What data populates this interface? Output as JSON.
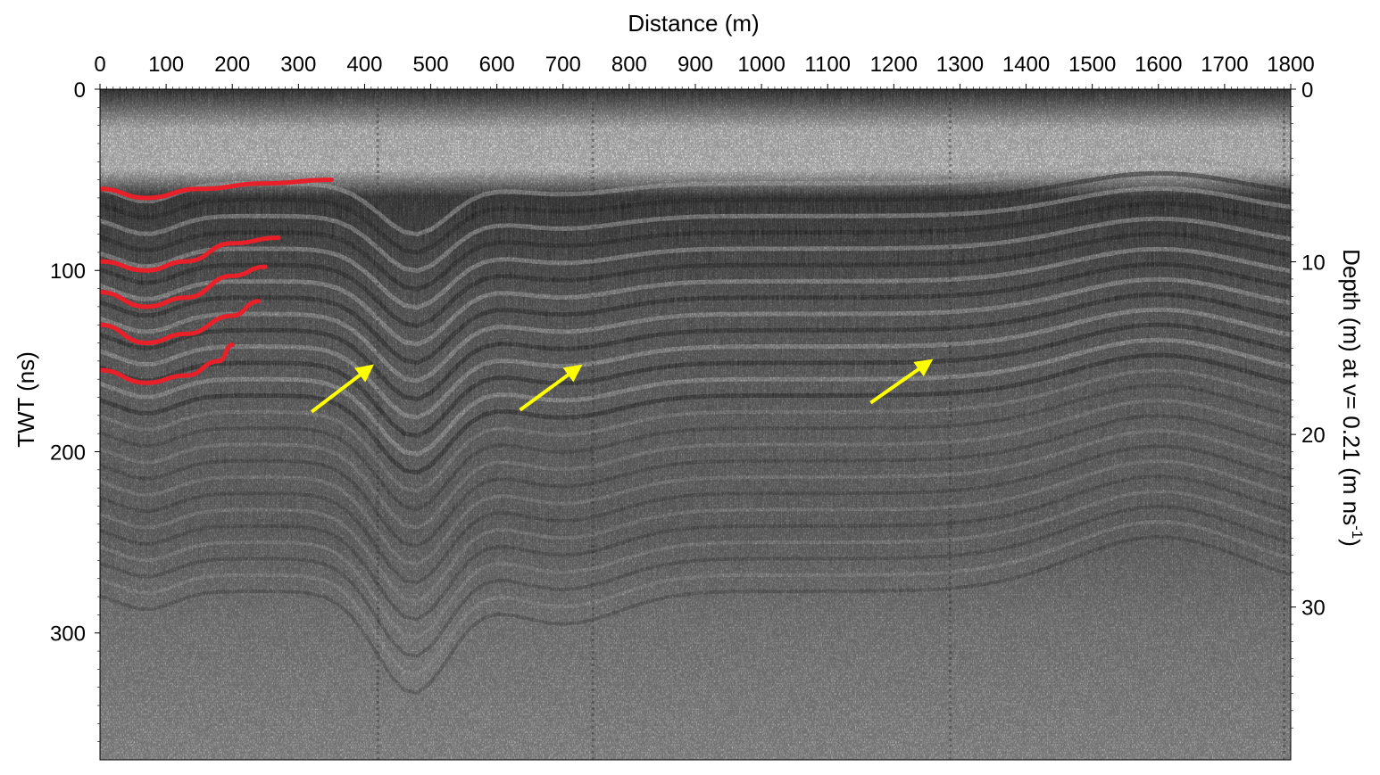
{
  "chart_data": {
    "type": "heatmap",
    "title": "",
    "xlabel": "Distance (m)",
    "ylabel": "TWT (ns)",
    "y2label": "Depth (m) at v= 0.21 (m ns",
    "y2label_superscript": "-1",
    "y2label_tail": ")",
    "xlim": [
      0,
      1800
    ],
    "ylim": [
      0,
      370
    ],
    "y2lim": [
      0,
      38.85
    ],
    "x_ticks": [
      0,
      100,
      200,
      300,
      400,
      500,
      600,
      700,
      800,
      900,
      1000,
      1100,
      1200,
      1300,
      1400,
      1500,
      1600,
      1700,
      1800
    ],
    "y_ticks": [
      0,
      100,
      200,
      300
    ],
    "y2_ticks": [
      0,
      10,
      20,
      30
    ],
    "x_axis_position": "top",
    "grid": false,
    "legend": "none",
    "colors": {
      "trace_lines": "#e8202a",
      "arrows": "#ffff00",
      "data_dark": "#000000",
      "data_light": "#ffffff"
    },
    "annotations": {
      "traced_reflectors": [
        {
          "points": [
            [
              0,
              55
            ],
            [
              70,
              60
            ],
            [
              150,
              55
            ],
            [
              250,
              52
            ],
            [
              350,
              50
            ]
          ]
        },
        {
          "points": [
            [
              0,
              95
            ],
            [
              70,
              100
            ],
            [
              130,
              95
            ],
            [
              200,
              85
            ],
            [
              270,
              82
            ]
          ]
        },
        {
          "points": [
            [
              0,
              112
            ],
            [
              70,
              120
            ],
            [
              130,
              115
            ],
            [
              200,
              103
            ],
            [
              250,
              98
            ]
          ]
        },
        {
          "points": [
            [
              0,
              130
            ],
            [
              70,
              140
            ],
            [
              130,
              135
            ],
            [
              200,
              125
            ],
            [
              240,
              117
            ]
          ]
        },
        {
          "points": [
            [
              0,
              155
            ],
            [
              70,
              162
            ],
            [
              130,
              158
            ],
            [
              180,
              150
            ],
            [
              200,
              141
            ]
          ]
        }
      ],
      "arrows": [
        {
          "from": [
            320,
            178
          ],
          "to": [
            410,
            153
          ]
        },
        {
          "from": [
            635,
            177
          ],
          "to": [
            725,
            153
          ]
        },
        {
          "from": [
            1165,
            173
          ],
          "to": [
            1255,
            150
          ]
        }
      ]
    }
  }
}
